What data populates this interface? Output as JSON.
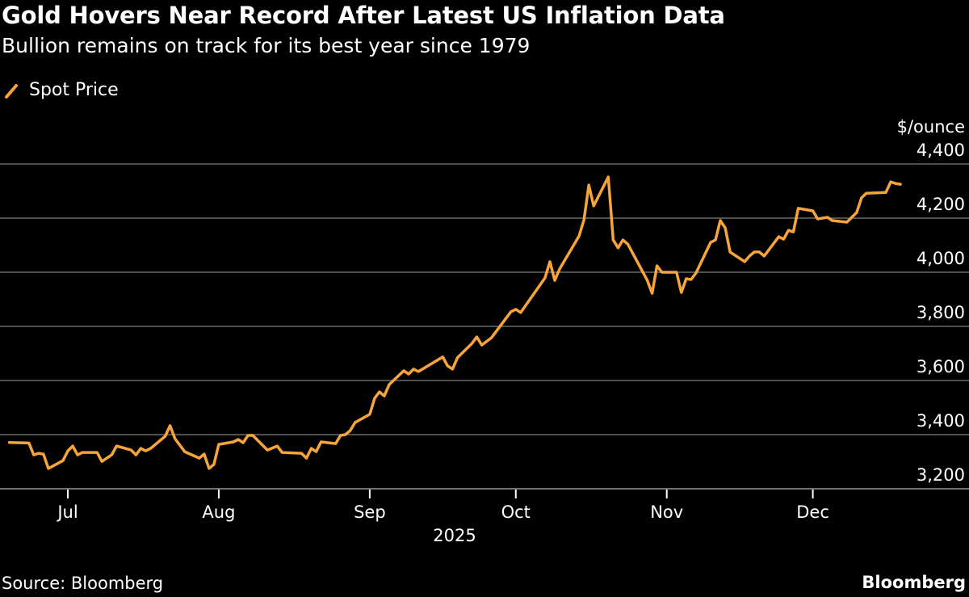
{
  "header": {
    "title": "Gold Hovers Near Record After Latest US Inflation Data",
    "subtitle": "Bullion remains on track for its best year since 1979"
  },
  "footer": {
    "source": "Source: Bloomberg",
    "logo": "Bloomberg"
  },
  "colors": {
    "line": "#f7a43a",
    "grid": "#6b6b6b",
    "background": "#000000",
    "text": "#ffffff"
  },
  "chart_data": {
    "type": "line",
    "title": "Gold Hovers Near Record After Latest US Inflation Data",
    "subtitle": "Bullion remains on track for its best year since 1979",
    "ylabel": "$/ounce",
    "xlabel": "2025",
    "ylim": [
      3200,
      4400
    ],
    "yticks": [
      3200,
      3400,
      3600,
      3800,
      4000,
      4200,
      4400
    ],
    "ytick_labels": [
      "3,200",
      "3,400",
      "3,600",
      "3,800",
      "4,000",
      "4,200",
      "4,400"
    ],
    "xticks": [
      "2025-07-01",
      "2025-08-01",
      "2025-09-01",
      "2025-10-01",
      "2025-11-01",
      "2025-12-01"
    ],
    "xtick_labels": [
      "Jul",
      "Aug",
      "Sep",
      "Oct",
      "Nov",
      "Dec"
    ],
    "grid": "horizontal",
    "y_axis_side": "right",
    "legend_position": "top-left",
    "series": [
      {
        "name": "Spot Price",
        "color": "#f7a43a",
        "x": [
          "2025-06-19",
          "2025-06-23",
          "2025-06-24",
          "2025-06-25",
          "2025-06-26",
          "2025-06-27",
          "2025-06-30",
          "2025-07-01",
          "2025-07-02",
          "2025-07-03",
          "2025-07-04",
          "2025-07-07",
          "2025-07-08",
          "2025-07-10",
          "2025-07-11",
          "2025-07-14",
          "2025-07-15",
          "2025-07-16",
          "2025-07-17",
          "2025-07-18",
          "2025-07-21",
          "2025-07-22",
          "2025-07-23",
          "2025-07-25",
          "2025-07-28",
          "2025-07-29",
          "2025-07-30",
          "2025-07-31",
          "2025-08-01",
          "2025-08-04",
          "2025-08-05",
          "2025-08-06",
          "2025-08-07",
          "2025-08-08",
          "2025-08-11",
          "2025-08-13",
          "2025-08-14",
          "2025-08-18",
          "2025-08-19",
          "2025-08-20",
          "2025-08-21",
          "2025-08-22",
          "2025-08-25",
          "2025-08-26",
          "2025-08-27",
          "2025-08-28",
          "2025-08-29",
          "2025-09-01",
          "2025-09-02",
          "2025-09-03",
          "2025-09-04",
          "2025-09-05",
          "2025-09-08",
          "2025-09-09",
          "2025-09-10",
          "2025-09-11",
          "2025-09-16",
          "2025-09-17",
          "2025-09-18",
          "2025-09-19",
          "2025-09-22",
          "2025-09-23",
          "2025-09-24",
          "2025-09-26",
          "2025-09-30",
          "2025-10-01",
          "2025-10-02",
          "2025-10-07",
          "2025-10-08",
          "2025-10-09",
          "2025-10-10",
          "2025-10-14",
          "2025-10-15",
          "2025-10-16",
          "2025-10-17",
          "2025-10-20",
          "2025-10-21",
          "2025-10-22",
          "2025-10-23",
          "2025-10-24",
          "2025-10-28",
          "2025-10-29",
          "2025-10-30",
          "2025-10-31",
          "2025-11-03",
          "2025-11-04",
          "2025-11-05",
          "2025-11-06",
          "2025-11-07",
          "2025-11-10",
          "2025-11-11",
          "2025-11-12",
          "2025-11-13",
          "2025-11-14",
          "2025-11-17",
          "2025-11-18",
          "2025-11-19",
          "2025-11-20",
          "2025-11-21",
          "2025-11-24",
          "2025-11-25",
          "2025-11-26",
          "2025-11-27",
          "2025-11-28",
          "2025-12-01",
          "2025-12-02",
          "2025-12-04",
          "2025-12-05",
          "2025-12-08",
          "2025-12-10",
          "2025-12-11",
          "2025-12-12",
          "2025-12-16",
          "2025-12-17",
          "2025-12-18",
          "2025-12-19"
        ],
        "values": [
          3371,
          3369,
          3325,
          3331,
          3328,
          3275,
          3304,
          3340,
          3358,
          3325,
          3334,
          3334,
          3301,
          3325,
          3358,
          3343,
          3325,
          3349,
          3340,
          3349,
          3394,
          3433,
          3385,
          3337,
          3313,
          3328,
          3275,
          3290,
          3364,
          3373,
          3382,
          3370,
          3397,
          3397,
          3343,
          3358,
          3334,
          3331,
          3313,
          3349,
          3337,
          3373,
          3367,
          3397,
          3400,
          3415,
          3445,
          3475,
          3534,
          3558,
          3543,
          3585,
          3636,
          3624,
          3642,
          3633,
          3687,
          3654,
          3642,
          3684,
          3737,
          3761,
          3731,
          3758,
          3854,
          3863,
          3851,
          3979,
          4039,
          3970,
          4012,
          4134,
          4194,
          4322,
          4245,
          4352,
          4119,
          4090,
          4119,
          4104,
          3970,
          3922,
          4024,
          4000,
          4000,
          3925,
          3976,
          3973,
          3997,
          4110,
          4119,
          4191,
          4164,
          4075,
          4039,
          4060,
          4075,
          4075,
          4060,
          4131,
          4122,
          4155,
          4149,
          4236,
          4227,
          4197,
          4203,
          4191,
          4185,
          4221,
          4275,
          4292,
          4295,
          4334,
          4328,
          4325
        ]
      }
    ]
  }
}
